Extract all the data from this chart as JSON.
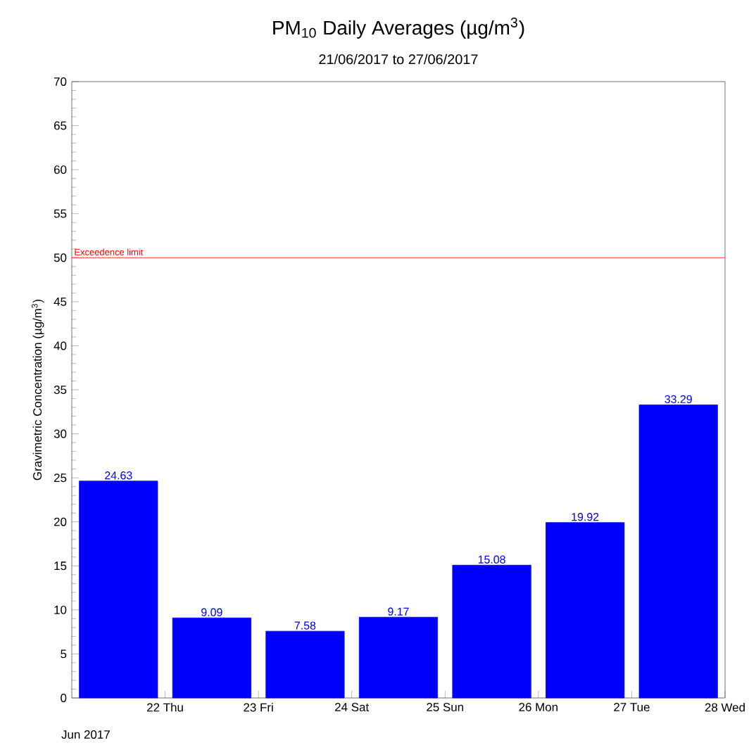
{
  "chart_data": {
    "type": "bar",
    "title": "PM$_{10}$ Daily Averages (µg/m$^{3}$)",
    "subtitle": "21/06/2017 to 27/06/2017",
    "ylabel": "Gravimetric Concentration (µg/m$^{3}$)",
    "x": [
      "2017-06-21T12:00",
      "2017-06-22T12:00",
      "2017-06-23T12:00",
      "2017-06-24T12:00",
      "2017-06-25T12:00",
      "2017-06-26T12:00",
      "2017-06-27T12:00"
    ],
    "values": [
      24.63,
      9.09,
      7.58,
      9.17,
      15.08,
      19.92,
      33.29
    ],
    "value_labels": [
      "24.63",
      "9.09",
      "7.58",
      "9.17",
      "15.08",
      "19.92",
      "33.29"
    ],
    "color": "#0000ff",
    "xlim": [
      "2017-06-21",
      "2017-06-28"
    ],
    "xticks": [
      {
        "value": "2017-06-22",
        "label": "22 Thu"
      },
      {
        "value": "2017-06-23",
        "label": "23 Fri"
      },
      {
        "value": "2017-06-24",
        "label": "24 Sat"
      },
      {
        "value": "2017-06-25",
        "label": "25 Sun"
      },
      {
        "value": "2017-06-26",
        "label": "26 Mon"
      },
      {
        "value": "2017-06-27",
        "label": "27 Tue"
      },
      {
        "value": "2017-06-28",
        "label": "28 Wed"
      }
    ],
    "ylim": [
      0,
      70
    ],
    "yticks": [
      0,
      5,
      10,
      15,
      20,
      25,
      30,
      35,
      40,
      45,
      50,
      55,
      60,
      65,
      70
    ],
    "ref_lines": [
      {
        "axis": "y",
        "value": 50,
        "label": "Exceedence limit",
        "color": "#ff0000"
      }
    ],
    "annotations": [
      "Jun 2017"
    ],
    "grid": false
  }
}
